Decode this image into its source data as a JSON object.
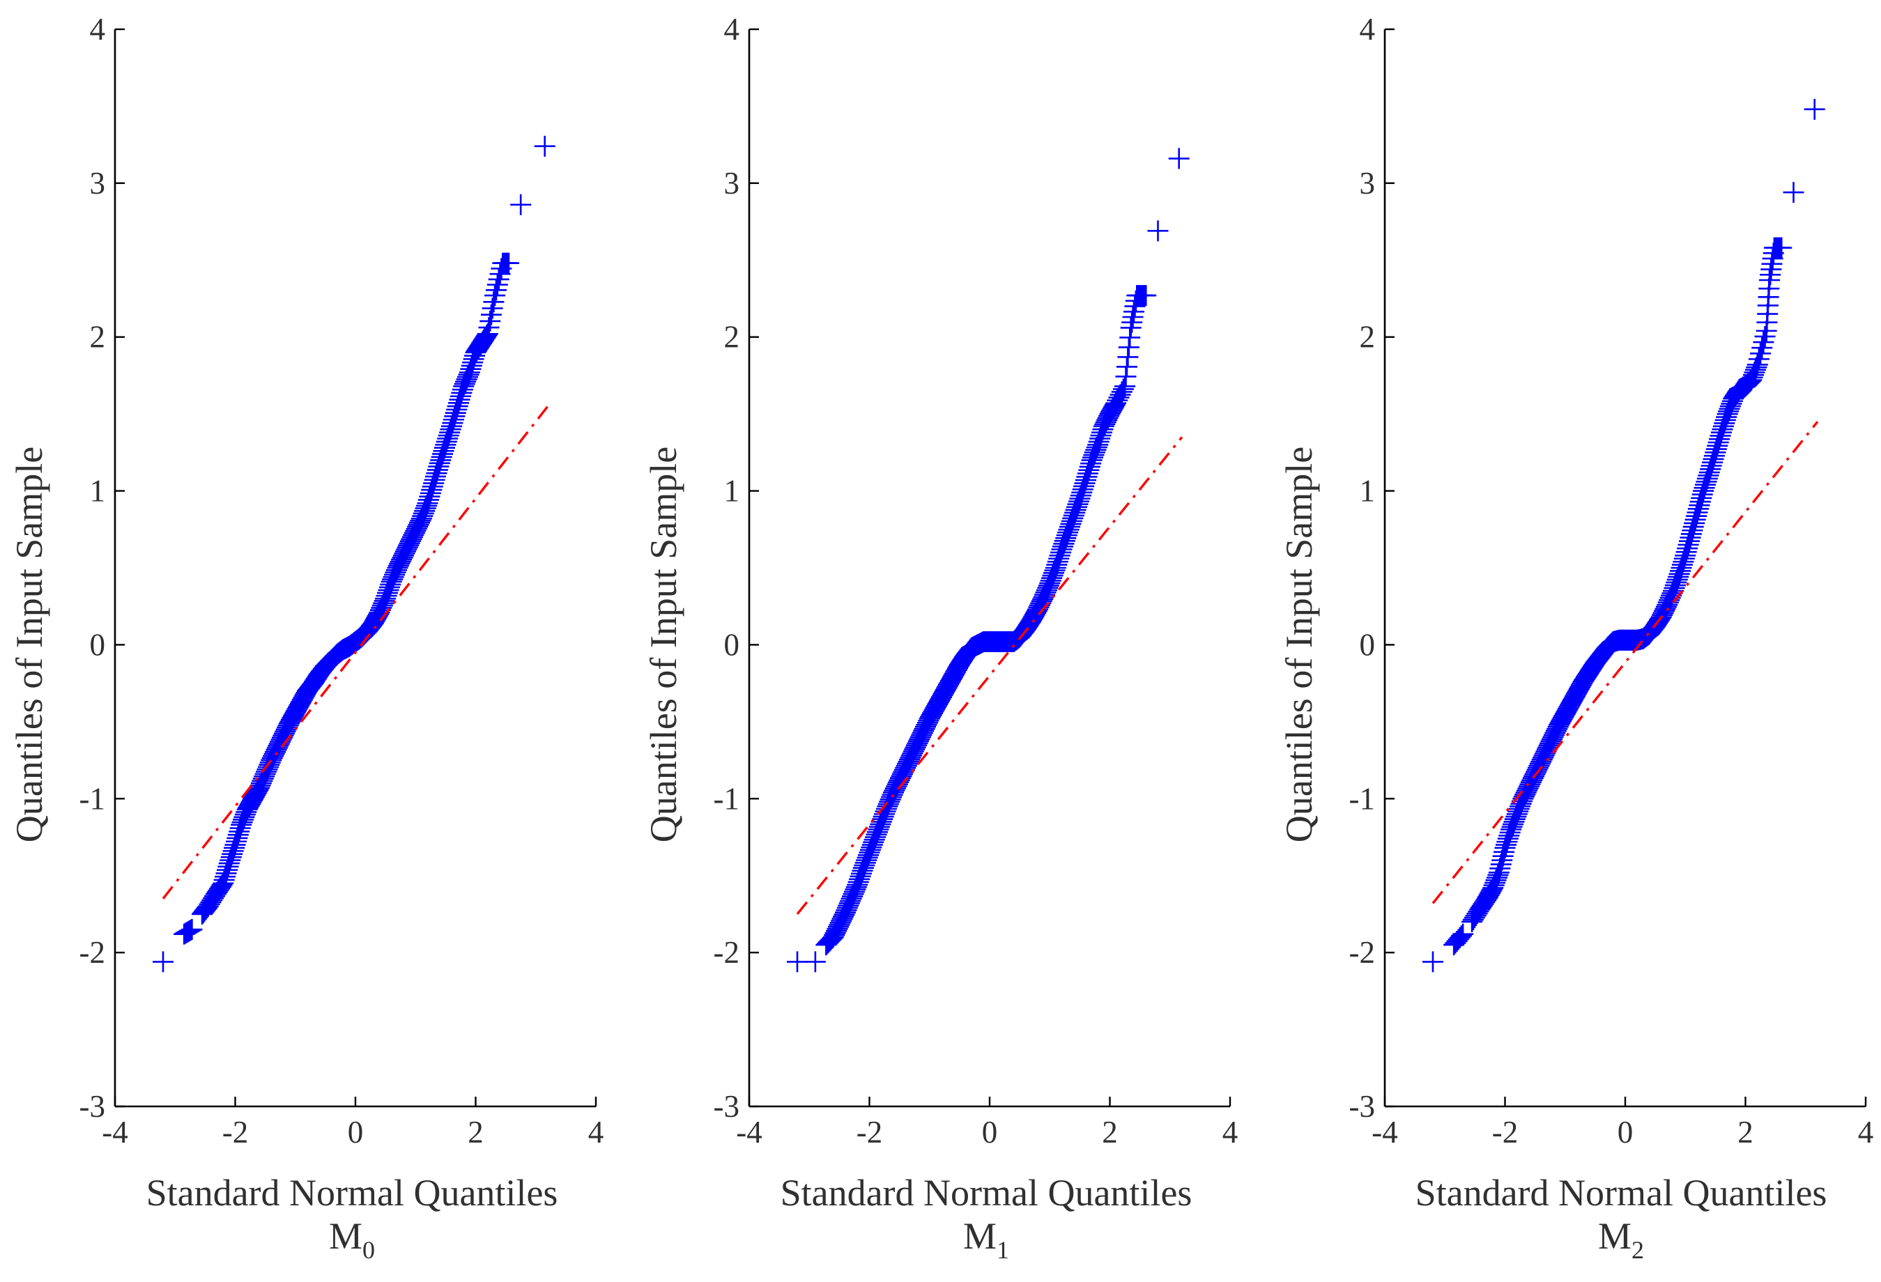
{
  "figure": {
    "background": "#ffffff",
    "marker_color": "#0000ff",
    "ref_line_color": "#ff0000"
  },
  "chart_data": [
    {
      "type": "scatter",
      "plot_kind": "qq-plot",
      "panel_label": "M",
      "panel_subscript": "0",
      "xlabel": "Standard Normal Quantiles",
      "ylabel": "Quantiles of Input Sample",
      "xlim": [
        -4,
        4
      ],
      "ylim": [
        -3,
        4
      ],
      "xticks": [
        -4,
        -2,
        0,
        2,
        4
      ],
      "yticks": [
        -3,
        -2,
        -1,
        0,
        1,
        2,
        3,
        4
      ],
      "marker": "+",
      "reference_line": {
        "style": "dash-dot",
        "x": [
          -3.2,
          3.2
        ],
        "y": [
          -1.65,
          1.55
        ]
      },
      "points": {
        "x": [
          -3.2,
          -2.85,
          -2.72,
          -2.55,
          -2.45,
          -2.32,
          -2.2,
          -2.1,
          -2.0,
          -1.9,
          -1.8,
          -1.7,
          -1.6,
          -1.5,
          -1.4,
          -1.3,
          -1.2,
          -1.1,
          -1.0,
          -0.9,
          -0.8,
          -0.7,
          -0.6,
          -0.5,
          -0.4,
          -0.3,
          -0.2,
          -0.1,
          0.0,
          0.1,
          0.2,
          0.3,
          0.4,
          0.5,
          0.6,
          0.7,
          0.8,
          0.9,
          1.0,
          1.1,
          1.2,
          1.3,
          1.4,
          1.5,
          1.6,
          1.7,
          1.8,
          1.9,
          2.0,
          2.1,
          2.2,
          2.32,
          2.45,
          2.55,
          2.75,
          3.15
        ],
        "y": [
          -2.06,
          -1.88,
          -1.85,
          -1.75,
          -1.7,
          -1.62,
          -1.55,
          -1.42,
          -1.3,
          -1.17,
          -1.07,
          -1.0,
          -0.93,
          -0.84,
          -0.75,
          -0.67,
          -0.59,
          -0.51,
          -0.44,
          -0.37,
          -0.3,
          -0.25,
          -0.19,
          -0.14,
          -0.1,
          -0.06,
          -0.03,
          -0.01,
          0.02,
          0.05,
          0.09,
          0.14,
          0.21,
          0.3,
          0.41,
          0.5,
          0.58,
          0.66,
          0.74,
          0.82,
          0.92,
          1.05,
          1.18,
          1.3,
          1.42,
          1.55,
          1.68,
          1.77,
          1.9,
          1.96,
          2.02,
          2.27,
          2.48,
          2.48,
          2.86,
          3.24
        ]
      }
    },
    {
      "type": "scatter",
      "plot_kind": "qq-plot",
      "panel_label": "M",
      "panel_subscript": "1",
      "xlabel": "Standard Normal Quantiles",
      "ylabel": "Quantiles of Input Sample",
      "xlim": [
        -4,
        4
      ],
      "ylim": [
        -3,
        4
      ],
      "xticks": [
        -4,
        -2,
        0,
        2,
        4
      ],
      "yticks": [
        -3,
        -2,
        -1,
        0,
        1,
        2,
        3,
        4
      ],
      "marker": "+",
      "reference_line": {
        "style": "dash-dot",
        "x": [
          -3.2,
          3.2
        ],
        "y": [
          -1.75,
          1.35
        ]
      },
      "points": {
        "x": [
          -3.2,
          -2.9,
          -2.72,
          -2.6,
          -2.5,
          -2.4,
          -2.3,
          -2.2,
          -2.1,
          -2.0,
          -1.9,
          -1.8,
          -1.7,
          -1.6,
          -1.5,
          -1.4,
          -1.3,
          -1.2,
          -1.1,
          -1.0,
          -0.9,
          -0.8,
          -0.7,
          -0.6,
          -0.5,
          -0.4,
          -0.3,
          -0.2,
          -0.1,
          0.0,
          0.1,
          0.2,
          0.3,
          0.4,
          0.5,
          0.6,
          0.7,
          0.8,
          0.9,
          1.0,
          1.1,
          1.2,
          1.3,
          1.4,
          1.5,
          1.6,
          1.7,
          1.8,
          1.9,
          2.0,
          2.1,
          2.25,
          2.35,
          2.45,
          2.6,
          2.8,
          3.15
        ],
        "y": [
          -2.06,
          -2.06,
          -1.95,
          -1.9,
          -1.82,
          -1.74,
          -1.65,
          -1.56,
          -1.45,
          -1.35,
          -1.25,
          -1.15,
          -1.05,
          -0.96,
          -0.88,
          -0.8,
          -0.72,
          -0.64,
          -0.56,
          -0.48,
          -0.41,
          -0.34,
          -0.27,
          -0.2,
          -0.13,
          -0.07,
          -0.02,
          0.0,
          0.02,
          0.02,
          0.02,
          0.02,
          0.02,
          0.02,
          0.05,
          0.1,
          0.16,
          0.23,
          0.31,
          0.4,
          0.5,
          0.62,
          0.73,
          0.84,
          0.95,
          1.07,
          1.2,
          1.3,
          1.42,
          1.5,
          1.57,
          1.68,
          2.06,
          2.27,
          2.27,
          2.69,
          3.16
        ]
      }
    },
    {
      "type": "scatter",
      "plot_kind": "qq-plot",
      "panel_label": "M",
      "panel_subscript": "2",
      "xlabel": "Standard Normal Quantiles",
      "ylabel": "Quantiles of Input Sample",
      "xlim": [
        -4,
        4
      ],
      "ylim": [
        -3,
        4
      ],
      "xticks": [
        -4,
        -2,
        0,
        2,
        4
      ],
      "yticks": [
        -3,
        -2,
        -1,
        0,
        1,
        2,
        3,
        4
      ],
      "marker": "+",
      "reference_line": {
        "style": "dash-dot",
        "x": [
          -3.2,
          3.2
        ],
        "y": [
          -1.68,
          1.45
        ]
      },
      "points": {
        "x": [
          -3.2,
          -2.85,
          -2.7,
          -2.55,
          -2.42,
          -2.3,
          -2.2,
          -2.1,
          -2.0,
          -1.9,
          -1.8,
          -1.7,
          -1.6,
          -1.5,
          -1.4,
          -1.3,
          -1.2,
          -1.1,
          -1.0,
          -0.9,
          -0.8,
          -0.7,
          -0.6,
          -0.5,
          -0.4,
          -0.3,
          -0.2,
          -0.1,
          0.0,
          0.1,
          0.2,
          0.3,
          0.4,
          0.5,
          0.6,
          0.7,
          0.8,
          0.9,
          1.0,
          1.1,
          1.2,
          1.3,
          1.4,
          1.5,
          1.6,
          1.7,
          1.8,
          1.9,
          2.0,
          2.1,
          2.2,
          2.35,
          2.4,
          2.48,
          2.6,
          2.8,
          3.15
        ],
        "y": [
          -2.06,
          -1.95,
          -1.88,
          -1.8,
          -1.72,
          -1.65,
          -1.58,
          -1.48,
          -1.32,
          -1.2,
          -1.1,
          -1.0,
          -0.92,
          -0.84,
          -0.76,
          -0.68,
          -0.6,
          -0.52,
          -0.45,
          -0.38,
          -0.31,
          -0.24,
          -0.18,
          -0.12,
          -0.07,
          -0.02,
          0.02,
          0.03,
          0.03,
          0.03,
          0.03,
          0.04,
          0.07,
          0.12,
          0.18,
          0.26,
          0.35,
          0.46,
          0.58,
          0.72,
          0.86,
          1.0,
          1.12,
          1.25,
          1.38,
          1.5,
          1.6,
          1.66,
          1.68,
          1.72,
          1.82,
          2.04,
          2.37,
          2.58,
          2.58,
          2.94,
          3.48
        ]
      }
    }
  ]
}
